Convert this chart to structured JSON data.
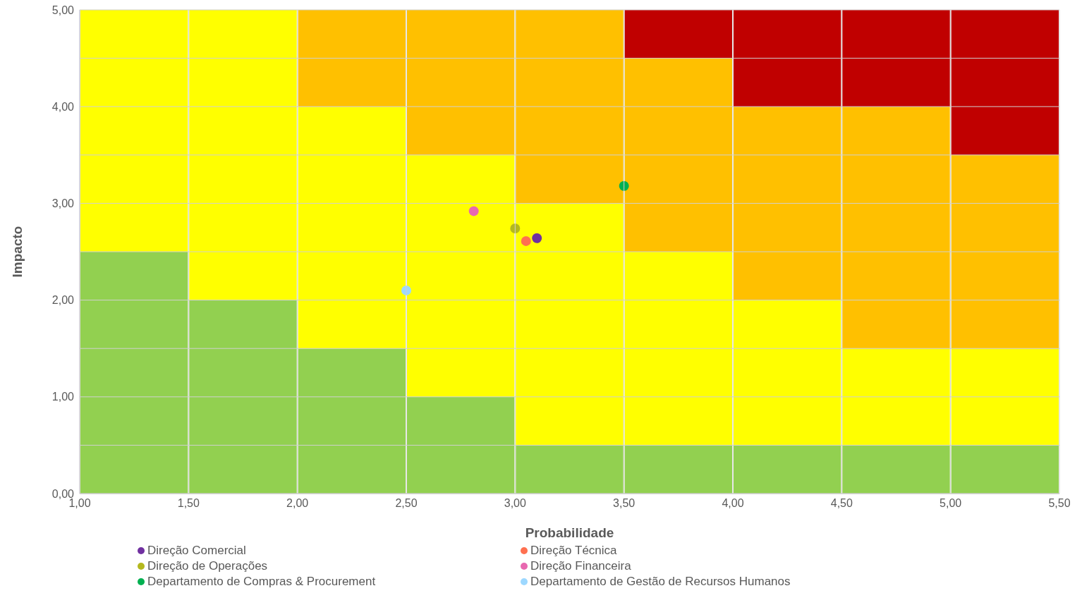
{
  "chart_data": {
    "type": "scatter",
    "xlabel": "Probabilidade",
    "ylabel": "Impacto",
    "xlim": [
      1,
      5.5
    ],
    "ylim": [
      0,
      5
    ],
    "xticks": [
      {
        "value": 1,
        "label": "1,00"
      },
      {
        "value": 1.5,
        "label": "1,50"
      },
      {
        "value": 2,
        "label": "2,00"
      },
      {
        "value": 2.5,
        "label": "2,50"
      },
      {
        "value": 3,
        "label": "3,00"
      },
      {
        "value": 3.5,
        "label": "3,50"
      },
      {
        "value": 4,
        "label": "4,00"
      },
      {
        "value": 4.5,
        "label": "4,50"
      },
      {
        "value": 5,
        "label": "5,00"
      },
      {
        "value": 5.5,
        "label": "5,50"
      }
    ],
    "yticks": [
      {
        "value": 0,
        "label": "0,00"
      },
      {
        "value": 0.5,
        "label": null
      },
      {
        "value": 1,
        "label": "1,00"
      },
      {
        "value": 1.5,
        "label": null
      },
      {
        "value": 2,
        "label": "2,00"
      },
      {
        "value": 2.5,
        "label": null
      },
      {
        "value": 3,
        "label": "3,00"
      },
      {
        "value": 3.5,
        "label": null
      },
      {
        "value": 4,
        "label": "4,00"
      },
      {
        "value": 4.5,
        "label": null
      },
      {
        "value": 5,
        "label": "5,00"
      }
    ],
    "grid": true,
    "legend": "bottom",
    "marker": "circle",
    "stacked": true,
    "series": [
      {
        "type": "bar",
        "color": "#92d050",
        "x": [
          1.25,
          1.75,
          2.25,
          2.75,
          3.25,
          3.75,
          4.25,
          4.75,
          5.25
        ],
        "values": [
          2.5,
          2,
          1.5,
          1,
          0.5,
          0.5,
          0.5,
          0.5,
          0.5
        ]
      },
      {
        "type": "bar",
        "color": "#ffff00",
        "x": [
          1.25,
          1.75,
          2.25,
          2.75,
          3.25,
          3.75,
          4.25,
          4.75,
          5.25
        ],
        "values": [
          2.5,
          3,
          2.5,
          2.5,
          2.5,
          2,
          1.5,
          1,
          1
        ]
      },
      {
        "type": "bar",
        "color": "#ffc000",
        "x": [
          1.25,
          1.75,
          2.25,
          2.75,
          3.25,
          3.75,
          4.25,
          4.75,
          5.25
        ],
        "values": [
          0,
          0,
          1,
          1.5,
          2,
          2,
          2,
          2.5,
          2
        ]
      },
      {
        "type": "bar",
        "color": "#c00000",
        "x": [
          1.25,
          1.75,
          2.25,
          2.75,
          3.25,
          3.75,
          4.25,
          4.75,
          5.25
        ],
        "values": [
          0,
          0,
          0,
          0,
          0,
          0.5,
          1,
          1,
          1.5
        ]
      },
      {
        "name": "Direção Comercial",
        "color": "#7030a0",
        "x": [
          3.1
        ],
        "values": [
          2.64
        ]
      },
      {
        "name": "Direção Técnica",
        "color": "#ff7050",
        "x": [
          3.05
        ],
        "values": [
          2.61
        ]
      },
      {
        "name": "Direção de Operações",
        "color": "#b4b81e",
        "x": [
          3.0
        ],
        "values": [
          2.74
        ]
      },
      {
        "name": "Direção Financeira",
        "color": "#e868b0",
        "x": [
          2.81
        ],
        "values": [
          2.92
        ]
      },
      {
        "name": "Departamento de Compras & Procurement",
        "color": "#00b050",
        "x": [
          3.5
        ],
        "values": [
          3.18
        ]
      },
      {
        "name": "Departamento de Gestão de Recursos Humanos",
        "color": "#9dd8ff",
        "x": [
          2.5
        ],
        "values": [
          2.1
        ]
      }
    ]
  }
}
